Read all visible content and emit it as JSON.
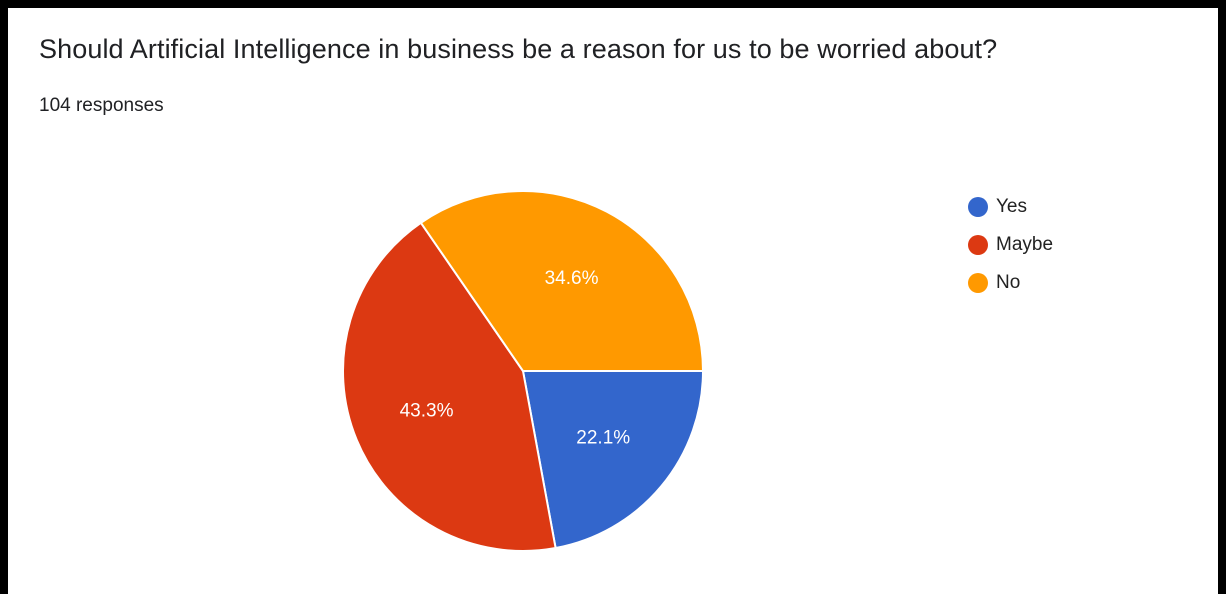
{
  "question": {
    "title": "Should Artificial Intelligence in business be a reason for us to be worried about?",
    "responses": "104 responses"
  },
  "chart_data": {
    "type": "pie",
    "title": "Should Artificial Intelligence in business be a reason for us to be worried about?",
    "categories": [
      "Yes",
      "Maybe",
      "No"
    ],
    "values": [
      22.1,
      43.3,
      34.6
    ],
    "labels": [
      "22.1%",
      "43.3%",
      "34.6%"
    ],
    "colors": [
      "#3366CC",
      "#DC3912",
      "#FF9900"
    ],
    "legend_position": "right"
  },
  "legend": {
    "items": [
      {
        "label": "Yes",
        "color": "#3366CC"
      },
      {
        "label": "Maybe",
        "color": "#DC3912"
      },
      {
        "label": "No",
        "color": "#FF9900"
      }
    ]
  }
}
